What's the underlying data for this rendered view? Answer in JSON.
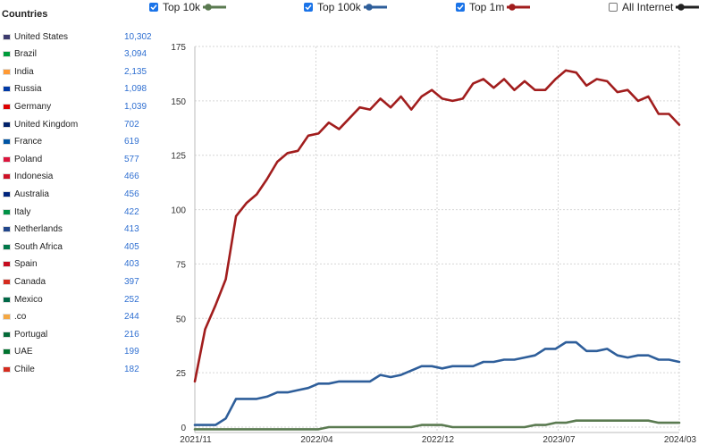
{
  "countries": {
    "title": "Countries",
    "items": [
      {
        "name": "United States",
        "count": "10,302",
        "flag_color": "#3c3b6e"
      },
      {
        "name": "Brazil",
        "count": "3,094",
        "flag_color": "#009c3b"
      },
      {
        "name": "India",
        "count": "2,135",
        "flag_color": "#ff9933"
      },
      {
        "name": "Russia",
        "count": "1,098",
        "flag_color": "#0039a6"
      },
      {
        "name": "Germany",
        "count": "1,039",
        "flag_color": "#dd0000"
      },
      {
        "name": "United Kingdom",
        "count": "702",
        "flag_color": "#012169"
      },
      {
        "name": "France",
        "count": "619",
        "flag_color": "#0055a4"
      },
      {
        "name": "Poland",
        "count": "577",
        "flag_color": "#dc143c"
      },
      {
        "name": "Indonesia",
        "count": "466",
        "flag_color": "#ce1126"
      },
      {
        "name": "Australia",
        "count": "456",
        "flag_color": "#00247d"
      },
      {
        "name": "Italy",
        "count": "422",
        "flag_color": "#009246"
      },
      {
        "name": "Netherlands",
        "count": "413",
        "flag_color": "#21468b"
      },
      {
        "name": "South Africa",
        "count": "405",
        "flag_color": "#007749"
      },
      {
        "name": "Spain",
        "count": "403",
        "flag_color": "#c60b1e"
      },
      {
        "name": "Canada",
        "count": "397",
        "flag_color": "#d52b1e"
      },
      {
        "name": "Mexico",
        "count": "252",
        "flag_color": "#006847"
      },
      {
        "name": ".co",
        "count": "244",
        "flag_color": "#f4a742"
      },
      {
        "name": "Portugal",
        "count": "216",
        "flag_color": "#046a38"
      },
      {
        "name": "UAE",
        "count": "199",
        "flag_color": "#00732f"
      },
      {
        "name": "Chile",
        "count": "182",
        "flag_color": "#d52b1e"
      }
    ]
  },
  "legend": [
    {
      "label": "Top 10k",
      "checked": true,
      "color": "#5a7a50"
    },
    {
      "label": "Top 100k",
      "checked": true,
      "color": "#2e5e9a"
    },
    {
      "label": "Top 1m",
      "checked": true,
      "color": "#a11d1d"
    },
    {
      "label": "All Internet",
      "checked": false,
      "color": "#222222"
    }
  ],
  "chart_data": {
    "type": "line",
    "x_ticks": [
      "2021/11",
      "2022/04",
      "2022/12",
      "2023/07",
      "2024/03"
    ],
    "y_ticks": [
      0,
      25,
      50,
      75,
      100,
      125,
      150,
      175
    ],
    "ylim": [
      0,
      175
    ],
    "grid": true,
    "series": [
      {
        "name": "Top 1m",
        "color": "#a11d1d",
        "values": [
          21,
          45,
          56,
          68,
          97,
          103,
          107,
          114,
          122,
          126,
          127,
          134,
          135,
          140,
          137,
          142,
          147,
          146,
          151,
          147,
          152,
          146,
          152,
          155,
          151,
          150,
          151,
          158,
          160,
          156,
          160,
          155,
          159,
          155,
          155,
          160,
          164,
          163,
          157,
          160,
          159,
          154,
          155,
          150,
          152,
          144,
          144,
          139
        ]
      },
      {
        "name": "Top 100k",
        "color": "#2e5e9a",
        "values": [
          1,
          1,
          1,
          4,
          13,
          13,
          13,
          14,
          16,
          16,
          17,
          18,
          20,
          20,
          21,
          21,
          21,
          21,
          24,
          23,
          24,
          26,
          28,
          28,
          27,
          28,
          28,
          28,
          30,
          30,
          31,
          31,
          32,
          33,
          36,
          36,
          39,
          39,
          35,
          35,
          36,
          33,
          32,
          33,
          33,
          31,
          31,
          30
        ]
      },
      {
        "name": "Top 10k",
        "color": "#5a7a50",
        "values": [
          -1,
          -1,
          -1,
          -1,
          -1,
          -1,
          -1,
          -1,
          -1,
          -1,
          -1,
          -1,
          -1,
          0,
          0,
          0,
          0,
          0,
          0,
          0,
          0,
          0,
          1,
          1,
          1,
          0,
          0,
          0,
          0,
          0,
          0,
          0,
          0,
          1,
          1,
          2,
          2,
          3,
          3,
          3,
          3,
          3,
          3,
          3,
          3,
          2,
          2,
          2
        ]
      }
    ]
  }
}
